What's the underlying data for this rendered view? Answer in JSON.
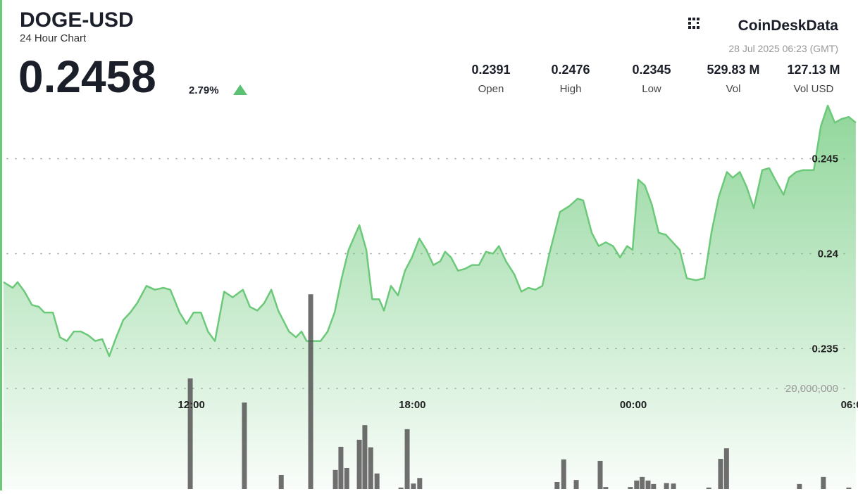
{
  "header": {
    "symbol": "DOGE-USD",
    "subtitle": "24 Hour Chart",
    "price": "0.2458",
    "change": "2.79%",
    "brand": "CoinDeskData",
    "timestamp": "28 Jul 2025 06:23 (GMT)"
  },
  "stats": [
    {
      "value": "0.2391",
      "label": "Open"
    },
    {
      "value": "0.2476",
      "label": "High"
    },
    {
      "value": "0.2345",
      "label": "Low"
    },
    {
      "value": "529.83 M",
      "label": "Vol"
    },
    {
      "value": "127.13 M",
      "label": "Vol USD"
    }
  ],
  "chart_data": [
    {
      "type": "line",
      "color": "#6cc97a",
      "x": [
        6.9,
        7.15,
        7.28,
        7.47,
        7.67,
        7.86,
        8.01,
        8.24,
        8.43,
        8.62,
        8.81,
        9.0,
        9.2,
        9.39,
        9.58,
        9.77,
        9.96,
        10.15,
        10.34,
        10.53,
        10.78,
        11.01,
        11.24,
        11.43,
        11.68,
        11.87,
        12.06,
        12.26,
        12.45,
        12.64,
        12.89,
        13.12,
        13.4,
        13.59,
        13.79,
        13.98,
        14.17,
        14.36,
        14.65,
        14.84,
        14.99,
        15.13,
        15.32,
        15.51,
        15.7,
        15.89,
        16.08,
        16.27,
        16.56,
        16.75,
        16.91,
        17.1,
        17.23,
        17.42,
        17.61,
        17.8,
        17.99,
        18.19,
        18.38,
        18.57,
        18.76,
        18.89,
        19.05,
        19.24,
        19.43,
        19.62,
        19.81,
        20.0,
        20.19,
        20.35,
        20.54,
        20.77,
        20.96,
        21.15,
        21.34,
        21.53,
        21.72,
        22.01,
        22.26,
        22.49,
        22.64,
        22.87,
        23.06,
        23.25,
        23.45,
        23.64,
        23.83,
        23.98,
        24.13,
        24.31,
        24.5,
        24.69,
        24.88,
        25.07,
        25.26,
        25.45,
        25.7,
        25.93,
        26.12,
        26.32,
        26.54,
        26.7,
        26.89,
        27.08,
        27.27,
        27.5,
        27.69,
        27.85,
        28.08,
        28.23,
        28.42,
        28.61,
        28.9,
        29.09,
        29.28,
        29.47,
        29.66,
        29.85,
        30.04
      ],
      "values": [
        0.2385,
        0.2382,
        0.2385,
        0.238,
        0.2373,
        0.2372,
        0.2369,
        0.2369,
        0.2356,
        0.2354,
        0.2359,
        0.2359,
        0.2357,
        0.2354,
        0.2355,
        0.2346,
        0.2356,
        0.2365,
        0.2369,
        0.2374,
        0.2383,
        0.2381,
        0.2382,
        0.2381,
        0.2369,
        0.2363,
        0.2369,
        0.2369,
        0.2359,
        0.2354,
        0.238,
        0.2377,
        0.2381,
        0.2372,
        0.237,
        0.2374,
        0.2381,
        0.237,
        0.2359,
        0.2356,
        0.2359,
        0.2354,
        0.2354,
        0.2354,
        0.2359,
        0.2369,
        0.2387,
        0.2402,
        0.2415,
        0.2402,
        0.2376,
        0.2376,
        0.237,
        0.2383,
        0.2378,
        0.2391,
        0.2398,
        0.2408,
        0.2402,
        0.2394,
        0.2396,
        0.2401,
        0.2398,
        0.2391,
        0.2392,
        0.2394,
        0.2394,
        0.2401,
        0.24,
        0.2404,
        0.2396,
        0.2389,
        0.238,
        0.2382,
        0.2381,
        0.2383,
        0.24,
        0.2422,
        0.2425,
        0.2429,
        0.2428,
        0.2411,
        0.2404,
        0.2406,
        0.2404,
        0.2398,
        0.2404,
        0.2402,
        0.2439,
        0.2436,
        0.2426,
        0.2411,
        0.241,
        0.2406,
        0.2402,
        0.2387,
        0.2386,
        0.2387,
        0.2411,
        0.243,
        0.2443,
        0.244,
        0.2443,
        0.2435,
        0.2424,
        0.2444,
        0.2445,
        0.2439,
        0.2431,
        0.244,
        0.2443,
        0.2444,
        0.2444,
        0.2467,
        0.2478,
        0.2469,
        0.2471,
        0.2472,
        0.2469
      ],
      "xlim": [
        6.9,
        30.1
      ],
      "xticks": [
        {
          "value": 12,
          "label": "12:00"
        },
        {
          "value": 18,
          "label": "18:00"
        },
        {
          "value": 24,
          "label": "00:00"
        },
        {
          "value": 30,
          "label": "06:00"
        }
      ],
      "ylim": [
        0.2276,
        0.2478
      ],
      "yticks": [
        0.235,
        0.24,
        0.245
      ],
      "grid": true
    },
    {
      "type": "bar",
      "color": "#555555",
      "x": [
        11.97,
        13.44,
        14.44,
        15.24,
        15.91,
        16.06,
        16.22,
        16.56,
        16.71,
        16.87,
        17.04,
        17.69,
        17.86,
        18.03,
        18.2,
        21.93,
        22.11,
        22.45,
        23.1,
        23.25,
        23.92,
        24.09,
        24.24,
        24.4,
        24.55,
        24.9,
        25.09,
        26.05,
        26.37,
        26.53,
        28.51,
        29.16,
        29.85
      ],
      "values": [
        22000000,
        17200000,
        2800000,
        38700000,
        3800000,
        8400000,
        4200000,
        9800000,
        12700000,
        8300000,
        3100000,
        300000,
        11900000,
        1100000,
        2200000,
        1400000,
        5900000,
        1800000,
        5600000,
        400000,
        400000,
        1700000,
        2400000,
        1700000,
        1000000,
        1200000,
        1100000,
        300000,
        6000000,
        8100000,
        1000000,
        2400000,
        300000
      ],
      "xlim": [
        6.9,
        30.1
      ],
      "ylim": [
        0,
        76200000
      ],
      "yticks": [
        {
          "value": 20000000,
          "label": "20,000,000"
        }
      ],
      "grid": true
    }
  ]
}
